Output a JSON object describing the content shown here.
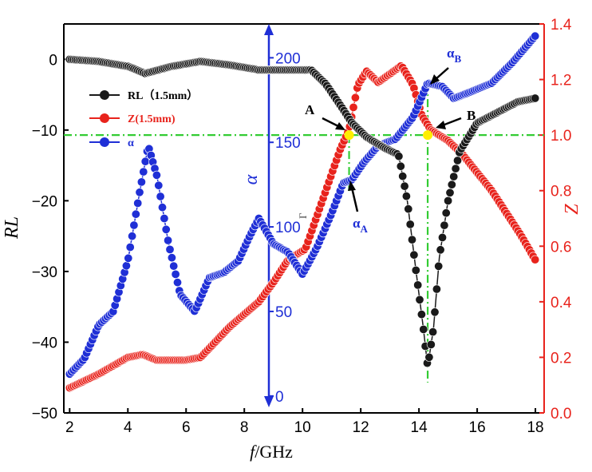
{
  "colors": {
    "rl": "#1a1a1a",
    "z": "#e8231c",
    "alpha": "#1f2fd6",
    "guide": "#33cc33",
    "highlight": "#ffee00"
  },
  "chart_data": {
    "type": "line",
    "xlabel_prefix": "f",
    "xlabel_suffix": "/GHz",
    "ylabel_left": "RL",
    "ylabel_right": "Z",
    "ylabel_inner": "α",
    "xlim": [
      1.8,
      18.3
    ],
    "ylim_left": [
      -50,
      5
    ],
    "ylim_right": [
      0.0,
      1.4
    ],
    "ylim_inner": [
      -10,
      220
    ],
    "x_ticks": [
      "2",
      "4",
      "6",
      "8",
      "10",
      "12",
      "14",
      "16",
      "18"
    ],
    "x_tick_values": [
      2,
      4,
      6,
      8,
      10,
      12,
      14,
      16,
      18
    ],
    "y_left_ticks": [
      "0",
      "−10",
      "−20",
      "−30",
      "−40",
      "−50"
    ],
    "y_left_tick_values": [
      0,
      -10,
      -20,
      -30,
      -40,
      -50
    ],
    "y_right_ticks": [
      "0.0",
      "0.2",
      "0.4",
      "0.6",
      "0.8",
      "1.0",
      "1.2",
      "1.4"
    ],
    "y_right_tick_values": [
      0.0,
      0.2,
      0.4,
      0.6,
      0.8,
      1.0,
      1.2,
      1.4
    ],
    "y_inner_ticks": [
      "0",
      "50",
      "100",
      "150",
      "200"
    ],
    "y_inner_tick_values": [
      0,
      50,
      100,
      150,
      200
    ],
    "reference_lines": {
      "rl": -10,
      "z": 1.0,
      "x_a": 11.6,
      "x_b": 14.3
    },
    "annotations": {
      "A": "A",
      "B": "B",
      "alpha": "α",
      "sub_a": "A",
      "sub_b": "B",
      "stray": "Γ"
    },
    "legend": [
      {
        "label": "RL（1.5mm）",
        "series": "rl"
      },
      {
        "label": "Z(1.5mm)",
        "series": "z"
      },
      {
        "label": "α",
        "series": "alpha"
      }
    ],
    "series": [
      {
        "name": "RL（1.5mm）",
        "key": "rl",
        "axis": "left",
        "points": [
          [
            2,
            0
          ],
          [
            3,
            -0.3
          ],
          [
            4,
            -1
          ],
          [
            4.6,
            -2
          ],
          [
            5.5,
            -1
          ],
          [
            6.5,
            -0.3
          ],
          [
            7.5,
            -0.8
          ],
          [
            8.5,
            -1.5
          ],
          [
            9.5,
            -1.5
          ],
          [
            10.3,
            -1.5
          ],
          [
            10.8,
            -3.5
          ],
          [
            11.3,
            -6.5
          ],
          [
            11.7,
            -9
          ],
          [
            12.2,
            -11
          ],
          [
            12.8,
            -12.5
          ],
          [
            13.3,
            -13.5
          ],
          [
            13.6,
            -20
          ],
          [
            13.9,
            -30
          ],
          [
            14.15,
            -38
          ],
          [
            14.3,
            -43.5
          ],
          [
            14.5,
            -38
          ],
          [
            14.7,
            -28
          ],
          [
            15.0,
            -20
          ],
          [
            15.4,
            -13
          ],
          [
            16,
            -9
          ],
          [
            16.7,
            -7.5
          ],
          [
            17.4,
            -6
          ],
          [
            18,
            -5.5
          ]
        ]
      },
      {
        "name": "Z(1.5mm)",
        "key": "z",
        "axis": "right",
        "points": [
          [
            2,
            0.09
          ],
          [
            3,
            0.14
          ],
          [
            4,
            0.2
          ],
          [
            4.5,
            0.21
          ],
          [
            5,
            0.19
          ],
          [
            6,
            0.19
          ],
          [
            6.5,
            0.2
          ],
          [
            7.5,
            0.31
          ],
          [
            8.5,
            0.4
          ],
          [
            9,
            0.47
          ],
          [
            9.5,
            0.55
          ],
          [
            10.1,
            0.59
          ],
          [
            10.8,
            0.8
          ],
          [
            11.3,
            0.95
          ],
          [
            11.6,
            1.02
          ],
          [
            11.9,
            1.18
          ],
          [
            12.2,
            1.23
          ],
          [
            12.6,
            1.19
          ],
          [
            13.0,
            1.22
          ],
          [
            13.4,
            1.25
          ],
          [
            13.8,
            1.18
          ],
          [
            14.1,
            1.07
          ],
          [
            14.4,
            1.02
          ],
          [
            15,
            0.98
          ],
          [
            15.5,
            0.93
          ],
          [
            16.5,
            0.8
          ],
          [
            17.5,
            0.64
          ],
          [
            18,
            0.55
          ]
        ]
      },
      {
        "name": "α",
        "key": "alpha",
        "axis": "inner",
        "points": [
          [
            2,
            13
          ],
          [
            2.5,
            22
          ],
          [
            3,
            42
          ],
          [
            3.5,
            50
          ],
          [
            4,
            80
          ],
          [
            4.4,
            120
          ],
          [
            4.7,
            148
          ],
          [
            5,
            130
          ],
          [
            5.4,
            90
          ],
          [
            5.8,
            60
          ],
          [
            6.3,
            50
          ],
          [
            6.8,
            70
          ],
          [
            7.3,
            73
          ],
          [
            7.8,
            80
          ],
          [
            8.2,
            95
          ],
          [
            8.5,
            105
          ],
          [
            9,
            90
          ],
          [
            9.5,
            85
          ],
          [
            10,
            72
          ],
          [
            10.5,
            88
          ],
          [
            11,
            108
          ],
          [
            11.4,
            126
          ],
          [
            11.7,
            128
          ],
          [
            12.1,
            138
          ],
          [
            12.6,
            148
          ],
          [
            13.2,
            152
          ],
          [
            13.8,
            165
          ],
          [
            14.3,
            185
          ],
          [
            14.8,
            183
          ],
          [
            15.2,
            176
          ],
          [
            15.8,
            180
          ],
          [
            16.5,
            185
          ],
          [
            17.2,
            197
          ],
          [
            18,
            213
          ]
        ]
      }
    ]
  }
}
